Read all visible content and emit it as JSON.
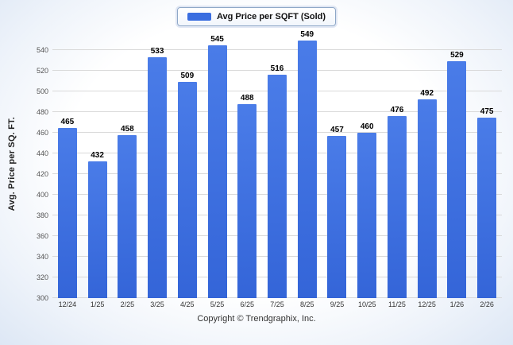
{
  "legend": {
    "label": "Avg Price per SQFT (Sold)",
    "swatch_color": "#3a6ee0"
  },
  "ylabel": "Avg. Price per SQ. FT.",
  "copyright": "Copyright © Trendgraphix, Inc.",
  "chart_data": {
    "type": "bar",
    "title": "",
    "xlabel": "",
    "ylabel": "Avg. Price per SQ. FT.",
    "categories": [
      "12/24",
      "1/25",
      "2/25",
      "3/25",
      "4/25",
      "5/25",
      "6/25",
      "7/25",
      "8/25",
      "9/25",
      "10/25",
      "11/25",
      "12/25",
      "1/26",
      "2/26"
    ],
    "values": [
      465,
      432,
      458,
      533,
      509,
      545,
      488,
      516,
      549,
      457,
      460,
      476,
      492,
      529,
      475
    ],
    "ylim": [
      300,
      560
    ],
    "yticks": [
      300,
      320,
      340,
      360,
      380,
      400,
      420,
      440,
      460,
      480,
      500,
      520,
      540
    ],
    "bar_color": "#3a6ee0",
    "grid": true,
    "legend": [
      "Avg Price per SQFT (Sold)"
    ],
    "legend_position": "top-center"
  }
}
